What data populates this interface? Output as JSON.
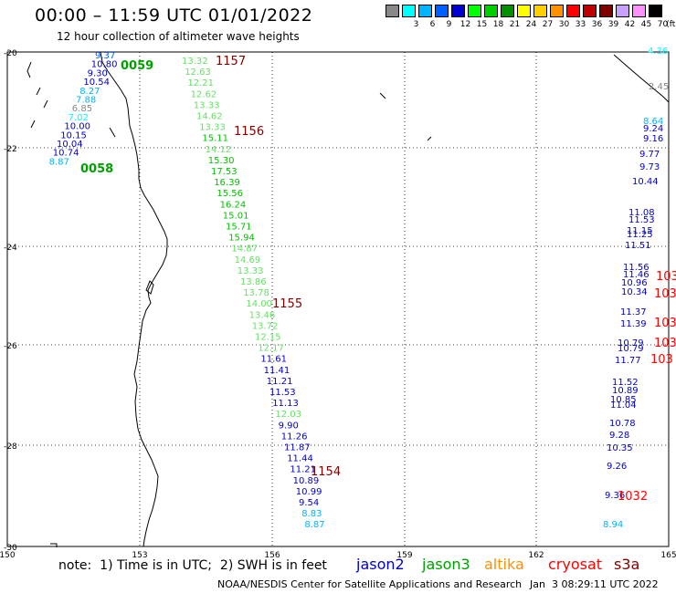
{
  "header": {
    "title": "00:00 – 11:59 UTC 01/01/2022",
    "subtitle": "12 hour collection of altimeter wave heights"
  },
  "colorbar": {
    "unit": "(ft)",
    "steps": [
      {
        "label": "",
        "color": "#888888"
      },
      {
        "label": "3",
        "color": "#00ffff"
      },
      {
        "label": "6",
        "color": "#00b4ff"
      },
      {
        "label": "9",
        "color": "#0060ff"
      },
      {
        "label": "12",
        "color": "#0000d0"
      },
      {
        "label": "15",
        "color": "#00ff00"
      },
      {
        "label": "18",
        "color": "#00d000"
      },
      {
        "label": "21",
        "color": "#009000"
      },
      {
        "label": "24",
        "color": "#ffff00"
      },
      {
        "label": "27",
        "color": "#ffd000"
      },
      {
        "label": "30",
        "color": "#ff9000"
      },
      {
        "label": "33",
        "color": "#ff0000"
      },
      {
        "label": "36",
        "color": "#c00000"
      },
      {
        "label": "39",
        "color": "#800000"
      },
      {
        "label": "42",
        "color": "#c8a0ff"
      },
      {
        "label": "45",
        "color": "#ff90ff"
      },
      {
        "label": "70",
        "color": "#000000"
      }
    ]
  },
  "map": {
    "lat_ticks": [
      "-20",
      "-22",
      "-24",
      "-26",
      "-28",
      "-30"
    ],
    "lon_ticks": [
      "150",
      "153",
      "156",
      "159",
      "162",
      "165"
    ]
  },
  "legend": {
    "note": "note:  1) Time is in UTC;  2) SWH is in feet",
    "satellites": [
      {
        "name": "jason2",
        "color": "#0000cc"
      },
      {
        "name": "jason3",
        "color": "#00a000"
      },
      {
        "name": "altika",
        "color": "#ff9000"
      },
      {
        "name": "cryosat",
        "color": "#ff0000"
      },
      {
        "name": "s3a",
        "color": "#800000"
      }
    ]
  },
  "footer": {
    "credit": "NOAA/NESDIS Center for Satellite Applications and Research",
    "date": "Jan  3 08:29:11 UTC 2022"
  },
  "tracks": [
    {
      "id": "west",
      "points": [
        {
          "v": "9.37",
          "c": "#0060ff"
        },
        {
          "v": "10.80",
          "c": "#0000d0"
        },
        {
          "v": "9.30",
          "c": "#0000d0"
        },
        {
          "v": "10.54",
          "c": "#0000d0"
        },
        {
          "v": "8.27",
          "c": "#00b4ff"
        },
        {
          "v": "7.88",
          "c": "#00b4ff"
        },
        {
          "v": "6.85",
          "c": "#888888"
        },
        {
          "v": "7.02",
          "c": "#00ffff"
        },
        {
          "v": "10.00",
          "c": "#0000d0"
        },
        {
          "v": "10.15",
          "c": "#0000d0"
        },
        {
          "v": "10.04",
          "c": "#0000d0"
        },
        {
          "v": "10.74",
          "c": "#0000d0"
        },
        {
          "v": "8.87",
          "c": "#00b4ff"
        }
      ]
    },
    {
      "id": "center",
      "points": [
        {
          "v": "13.32",
          "c": "#66e066"
        },
        {
          "v": "12.63",
          "c": "#66e066"
        },
        {
          "v": "12.21",
          "c": "#66e066"
        },
        {
          "v": "12.62",
          "c": "#66e066"
        },
        {
          "v": "13.33",
          "c": "#66e066"
        },
        {
          "v": "14.62",
          "c": "#66e066"
        },
        {
          "v": "13.33",
          "c": "#66e066"
        },
        {
          "v": "15.11",
          "c": "#00c000"
        },
        {
          "v": "14.12",
          "c": "#66e066"
        },
        {
          "v": "15.30",
          "c": "#00c000"
        },
        {
          "v": "17.53",
          "c": "#00c000"
        },
        {
          "v": "16.39",
          "c": "#00c000"
        },
        {
          "v": "15.56",
          "c": "#00c000"
        },
        {
          "v": "16.24",
          "c": "#00c000"
        },
        {
          "v": "15.01",
          "c": "#00c000"
        },
        {
          "v": "15.71",
          "c": "#00c000"
        },
        {
          "v": "15.94",
          "c": "#00c000"
        },
        {
          "v": "14.87",
          "c": "#66e066"
        },
        {
          "v": "14.69",
          "c": "#66e066"
        },
        {
          "v": "13.33",
          "c": "#66e066"
        },
        {
          "v": "13.86",
          "c": "#66e066"
        },
        {
          "v": "13.78",
          "c": "#66e066"
        },
        {
          "v": "14.00",
          "c": "#66e066"
        },
        {
          "v": "13.46",
          "c": "#66e066"
        },
        {
          "v": "13.72",
          "c": "#66e066"
        },
        {
          "v": "12.15",
          "c": "#66e066"
        },
        {
          "v": "12.17",
          "c": "#66e066"
        },
        {
          "v": "11.61",
          "c": "#0000d0"
        },
        {
          "v": "11.41",
          "c": "#0000d0"
        },
        {
          "v": "11.21",
          "c": "#0000d0"
        },
        {
          "v": "11.53",
          "c": "#0000d0"
        },
        {
          "v": "11.13",
          "c": "#0000d0"
        },
        {
          "v": "12.03",
          "c": "#66e066"
        },
        {
          "v": "9.90",
          "c": "#0000d0"
        },
        {
          "v": "11.26",
          "c": "#0000d0"
        },
        {
          "v": "11.87",
          "c": "#0000d0"
        },
        {
          "v": "11.44",
          "c": "#0000d0"
        },
        {
          "v": "11.21",
          "c": "#0000d0"
        },
        {
          "v": "10.89",
          "c": "#0000d0"
        },
        {
          "v": "10.99",
          "c": "#0000d0"
        },
        {
          "v": "9.54",
          "c": "#0000d0"
        },
        {
          "v": "8.83",
          "c": "#00b4ff"
        },
        {
          "v": "8.87",
          "c": "#00b4ff"
        }
      ]
    },
    {
      "id": "east",
      "points": [
        {
          "v": "4.36",
          "c": "#00ffff"
        },
        {
          "v": "2.45",
          "c": "#888888"
        },
        {
          "v": "8.64",
          "c": "#00b4ff"
        },
        {
          "v": "9.24",
          "c": "#0000d0"
        },
        {
          "v": "9.16",
          "c": "#0000d0"
        },
        {
          "v": "9.77",
          "c": "#0000d0"
        },
        {
          "v": "9.73",
          "c": "#0000d0"
        },
        {
          "v": "10.44",
          "c": "#0000d0"
        },
        {
          "v": "11.08",
          "c": "#0000d0"
        },
        {
          "v": "11.53",
          "c": "#0000d0"
        },
        {
          "v": "11.15",
          "c": "#0000d0"
        },
        {
          "v": "11.25",
          "c": "#0000d0"
        },
        {
          "v": "11.51",
          "c": "#0000d0"
        },
        {
          "v": "11.56",
          "c": "#0000d0"
        },
        {
          "v": "11.46",
          "c": "#0000d0"
        },
        {
          "v": "10.96",
          "c": "#0000d0"
        },
        {
          "v": "10.34",
          "c": "#0000d0"
        },
        {
          "v": "11.37",
          "c": "#0000d0"
        },
        {
          "v": "11.39",
          "c": "#0000d0"
        },
        {
          "v": "10.79",
          "c": "#0000d0"
        },
        {
          "v": "10.79",
          "c": "#0000d0"
        },
        {
          "v": "11.77",
          "c": "#0000d0"
        },
        {
          "v": "11.52",
          "c": "#0000d0"
        },
        {
          "v": "10.89",
          "c": "#0000d0"
        },
        {
          "v": "10.85",
          "c": "#0000d0"
        },
        {
          "v": "11.04",
          "c": "#0000d0"
        },
        {
          "v": "10.78",
          "c": "#0000d0"
        },
        {
          "v": "9.28",
          "c": "#0000d0"
        },
        {
          "v": "10.35",
          "c": "#0000d0"
        },
        {
          "v": "9.26",
          "c": "#0000d0"
        },
        {
          "v": "9.36",
          "c": "#0000d0"
        },
        {
          "v": "8.94",
          "c": "#00b4ff"
        }
      ]
    }
  ],
  "times": [
    {
      "v": "0059",
      "c": "#00a000"
    },
    {
      "v": "1157",
      "c": "#800000"
    },
    {
      "v": "0058",
      "c": "#00a000"
    },
    {
      "v": "1156",
      "c": "#800000"
    },
    {
      "v": "1155",
      "c": "#800000"
    },
    {
      "v": "1154",
      "c": "#800000"
    },
    {
      "v": "103",
      "c": "#ff0000"
    },
    {
      "v": "1032",
      "c": "#ff0000"
    }
  ]
}
